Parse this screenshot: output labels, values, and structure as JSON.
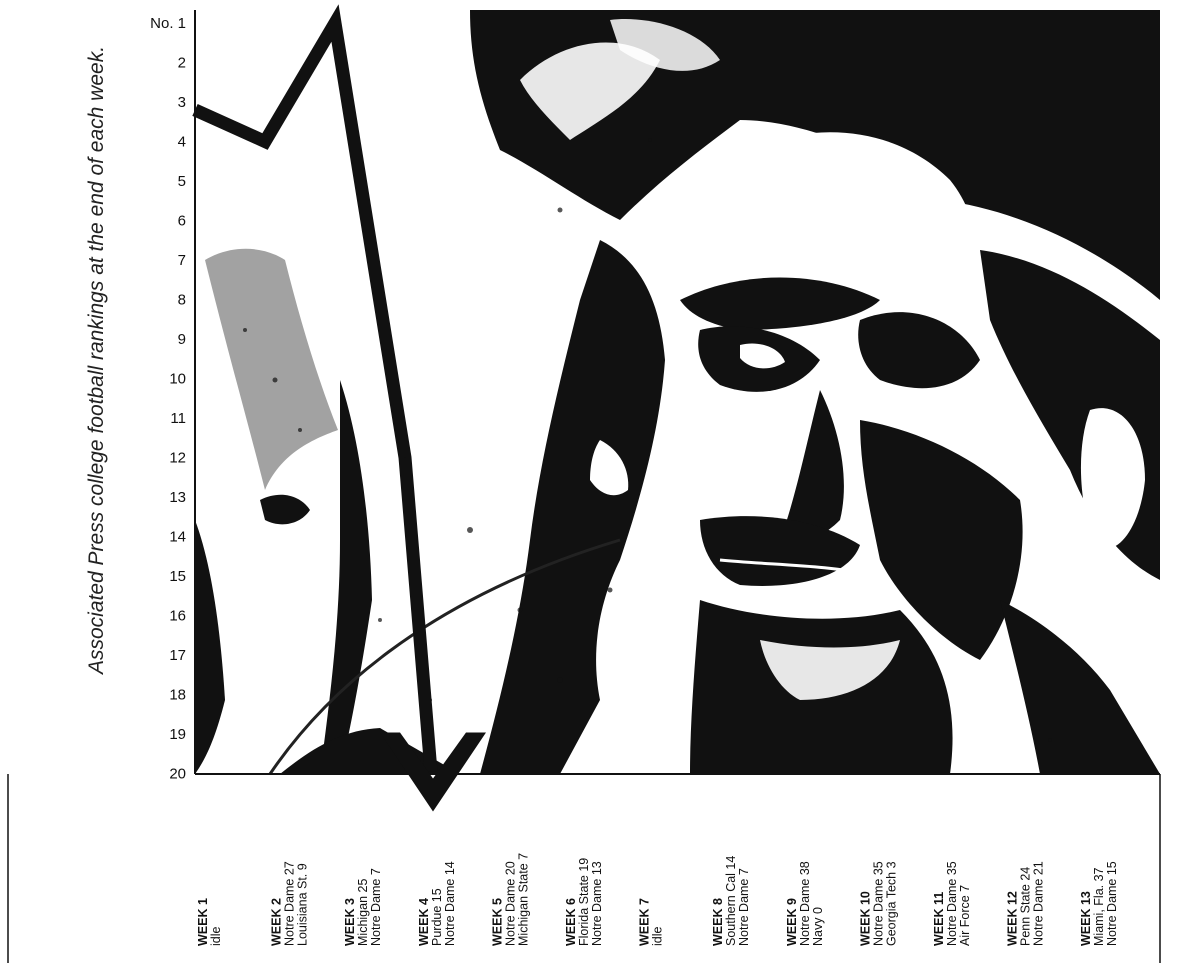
{
  "chart_data": {
    "type": "line",
    "title": "",
    "ylabel": "Associated Press college football rankings at the end of each week.",
    "xlabel": "",
    "y_axis": {
      "reversed": true,
      "ylim": [
        1,
        20
      ],
      "tick_labels": [
        "No. 1",
        "2",
        "3",
        "4",
        "5",
        "6",
        "7",
        "8",
        "9",
        "10",
        "11",
        "12",
        "13",
        "14",
        "15",
        "16",
        "17",
        "18",
        "19",
        "20"
      ]
    },
    "x": [
      1,
      2,
      3,
      4
    ],
    "series": [
      {
        "values": [
          3.2,
          4,
          1,
          12
        ]
      }
    ],
    "end_arrow": {
      "points_to_week": 4,
      "beyond_value": 20
    },
    "background": "high-contrast black-and-white photograph of a man's face",
    "weeks": [
      {
        "label": "WEEK 1",
        "lines": [
          "idle"
        ]
      },
      {
        "label": "WEEK 2",
        "lines": [
          "Notre Dame 27",
          "Louisiana St. 9"
        ]
      },
      {
        "label": "WEEK 3",
        "lines": [
          "Michigan 25",
          "Notre Dame 7"
        ]
      },
      {
        "label": "WEEK 4",
        "lines": [
          "Purdue 15",
          "Notre Dame 14"
        ]
      },
      {
        "label": "WEEK 5",
        "lines": [
          "Notre Dame 20",
          "Michigan State 7"
        ]
      },
      {
        "label": "WEEK 6",
        "lines": [
          "Florida State 19",
          "Notre Dame 13"
        ]
      },
      {
        "label": "WEEK 7",
        "lines": [
          "idle"
        ]
      },
      {
        "label": "WEEK 8",
        "lines": [
          "Southern Cal 14",
          "Notre Dame 7"
        ]
      },
      {
        "label": "WEEK 9",
        "lines": [
          "Notre Dame 38",
          "Navy 0"
        ]
      },
      {
        "label": "WEEK 10",
        "lines": [
          "Notre Dame 35",
          "Georgia Tech 3"
        ]
      },
      {
        "label": "WEEK 11",
        "lines": [
          "Notre Dame 35",
          "Air Force 7"
        ]
      },
      {
        "label": "WEEK 12",
        "lines": [
          "Penn State 24",
          "Notre Dame 21"
        ]
      },
      {
        "label": "WEEK 13",
        "lines": [
          "Miami, Fla. 37",
          "Notre Dame 15"
        ]
      }
    ],
    "colors": {
      "ink": "#111111",
      "paper": "#ffffff",
      "mid": "#777777"
    }
  }
}
